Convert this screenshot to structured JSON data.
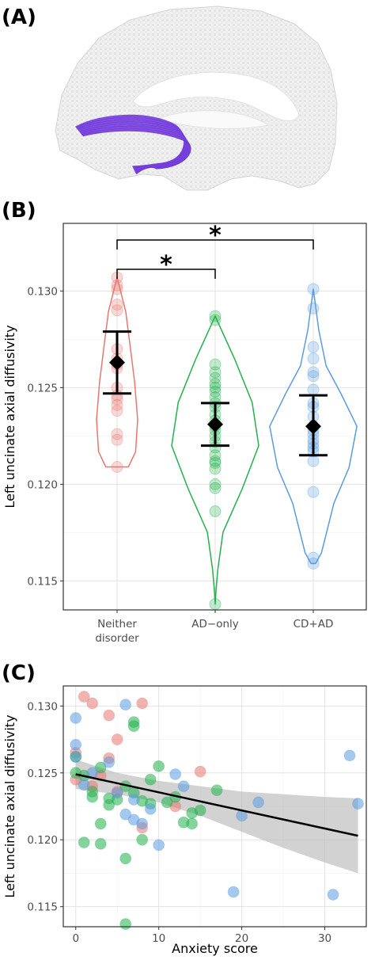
{
  "panels": {
    "a": "(A)",
    "b": "(B)",
    "c": "(C)"
  },
  "colors": {
    "neither": "#E8776F",
    "ad_only": "#22B14C",
    "cd_ad": "#5B9BE0",
    "summary": "#000000",
    "band": "#BFBFBF",
    "tract": "#7B45E0"
  },
  "chart_data": [
    {
      "type": "violin",
      "panel": "B",
      "title": "",
      "xlabel": "",
      "ylabel": "Left uncinate axial diffusivity",
      "ylim": [
        0.1135,
        0.1335
      ],
      "yticks": [
        0.115,
        0.12,
        0.125,
        0.13
      ],
      "ytick_labels": [
        "0.115",
        "0.120",
        "0.125",
        "0.130"
      ],
      "categories": [
        "Neither disorder",
        "AD−only",
        "CD+AD"
      ],
      "category_lines": [
        [
          "Neither",
          "disorder"
        ],
        [
          "AD−only"
        ],
        [
          "CD+AD"
        ]
      ],
      "grid": true,
      "groups": [
        {
          "category": "Neither disorder",
          "color_key": "neither",
          "range": [
            0.1209,
            0.1307
          ],
          "mean": 0.1263,
          "ci": [
            0.1247,
            0.1279
          ],
          "points": [
            0.1307,
            0.1303,
            0.1301,
            0.1293,
            0.129,
            0.127,
            0.1265,
            0.1262,
            0.126,
            0.125,
            0.1246,
            0.1244,
            0.1241,
            0.1238,
            0.1226,
            0.1223,
            0.1209
          ]
        },
        {
          "category": "AD−only",
          "color_key": "ad_only",
          "range": [
            0.1138,
            0.1287
          ],
          "mean": 0.1231,
          "ci": [
            0.122,
            0.1242
          ],
          "points": [
            0.1287,
            0.1285,
            0.1262,
            0.1258,
            0.1255,
            0.1252,
            0.125,
            0.1248,
            0.1245,
            0.1242,
            0.124,
            0.1236,
            0.1233,
            0.123,
            0.1228,
            0.1225,
            0.1222,
            0.1219,
            0.1215,
            0.1212,
            0.1211,
            0.1208,
            0.12,
            0.1198,
            0.1186,
            0.1138
          ]
        },
        {
          "category": "CD+AD",
          "color_key": "cd_ad",
          "range": [
            0.1159,
            0.1301
          ],
          "mean": 0.123,
          "ci": [
            0.1215,
            0.1246
          ],
          "points": [
            0.1301,
            0.1291,
            0.1271,
            0.1265,
            0.1258,
            0.1256,
            0.1249,
            0.1242,
            0.124,
            0.1235,
            0.123,
            0.1228,
            0.1226,
            0.1223,
            0.1221,
            0.1219,
            0.1217,
            0.1212,
            0.1196,
            0.1162,
            0.1159
          ]
        }
      ],
      "annotations": [
        {
          "from": "Neither disorder",
          "to": "AD−only",
          "label": "*"
        },
        {
          "from": "Neither disorder",
          "to": "CD+AD",
          "label": "*"
        }
      ]
    },
    {
      "type": "scatter",
      "panel": "C",
      "title": "",
      "xlabel": "Anxiety score",
      "ylabel": "Left uncinate axial diffusivity",
      "xlim": [
        -1.5,
        35
      ],
      "ylim": [
        0.1135,
        0.1315
      ],
      "xticks": [
        0,
        10,
        20,
        30
      ],
      "xtick_labels": [
        "0",
        "10",
        "20",
        "30"
      ],
      "yticks": [
        0.115,
        0.12,
        0.125,
        0.13
      ],
      "ytick_labels": [
        "0.115",
        "0.120",
        "0.125",
        "0.130"
      ],
      "grid": true,
      "fit_line": {
        "x": [
          0,
          34
        ],
        "y": [
          0.1249,
          0.1203
        ]
      },
      "confidence_band": {
        "x": [
          0,
          5,
          10,
          15,
          20,
          25,
          30,
          34
        ],
        "lower": [
          0.1238,
          0.1234,
          0.1228,
          0.1218,
          0.1206,
          0.1194,
          0.1183,
          0.1175
        ],
        "upper": [
          0.126,
          0.125,
          0.1244,
          0.124,
          0.1236,
          0.1234,
          0.1232,
          0.1231
        ]
      },
      "series": [
        {
          "color_key": "neither",
          "x": [
            1,
            2,
            4,
            8,
            0,
            4,
            5,
            8,
            15,
            12,
            0,
            2,
            3,
            5
          ],
          "y": [
            0.1307,
            0.1302,
            0.1293,
            0.1302,
            0.1265,
            0.1261,
            0.1275,
            0.1209,
            0.1251,
            0.1225,
            0.1245,
            0.124,
            0.1248,
            0.1236
          ]
        },
        {
          "color_key": "ad_only",
          "x": [
            7,
            7,
            0,
            0,
            1,
            2,
            3,
            4,
            1,
            3,
            5,
            6,
            7,
            8,
            9,
            10,
            13,
            14,
            15,
            17,
            3,
            6,
            8,
            6,
            4,
            2,
            9,
            11,
            12,
            14
          ],
          "y": [
            0.1288,
            0.1285,
            0.1262,
            0.125,
            0.1248,
            0.1232,
            0.1254,
            0.1226,
            0.1198,
            0.1197,
            0.123,
            0.124,
            0.1235,
            0.1229,
            0.1245,
            0.1255,
            0.1213,
            0.1212,
            0.1222,
            0.1237,
            0.1212,
            0.1186,
            0.12,
            0.1137,
            0.1231,
            0.1236,
            0.1227,
            0.1228,
            0.1232,
            0.122
          ]
        },
        {
          "color_key": "cd_ad",
          "x": [
            0,
            0,
            0,
            6,
            4,
            2,
            5,
            7,
            12,
            13,
            20,
            22,
            33,
            34,
            6,
            7,
            8,
            9,
            10,
            19,
            31,
            1
          ],
          "y": [
            0.1291,
            0.1271,
            0.1262,
            0.1301,
            0.1258,
            0.125,
            0.1235,
            0.123,
            0.1249,
            0.124,
            0.1218,
            0.1228,
            0.1263,
            0.1227,
            0.1219,
            0.1215,
            0.1212,
            0.1223,
            0.1196,
            0.1161,
            0.1159,
            0.1241
          ]
        }
      ]
    }
  ]
}
